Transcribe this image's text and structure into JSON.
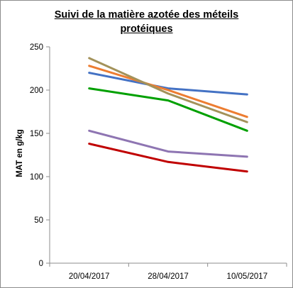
{
  "chart_data": {
    "type": "line",
    "title_line1": "Suivi de la matière azotée des méteils",
    "title_line2": "protéiques",
    "xlabel": "",
    "ylabel": "MAT en g/kg",
    "categories": [
      "20/04/2017",
      "28/04/2017",
      "10/05/2017"
    ],
    "ylim": [
      0,
      250
    ],
    "yticks": [
      0,
      50,
      100,
      150,
      200,
      250
    ],
    "grid": false,
    "legend": "none",
    "series": [
      {
        "color": "#4472C4",
        "values": [
          220,
          202,
          195
        ]
      },
      {
        "color": "#ED7D31",
        "values": [
          228,
          200,
          169
        ]
      },
      {
        "color": "#A3925A",
        "values": [
          237,
          196,
          163
        ]
      },
      {
        "color": "#00A000",
        "values": [
          202,
          188,
          153
        ]
      },
      {
        "color": "#8E75B2",
        "values": [
          153,
          129,
          123
        ]
      },
      {
        "color": "#C00000",
        "values": [
          138,
          117,
          106
        ]
      }
    ]
  }
}
